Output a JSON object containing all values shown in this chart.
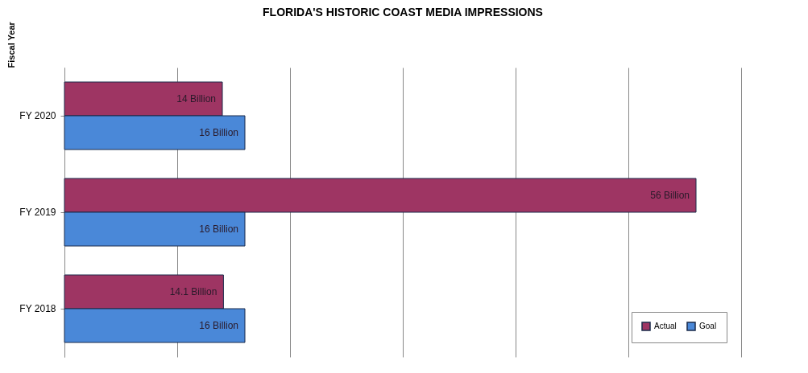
{
  "chart_data": {
    "type": "bar",
    "orientation": "horizontal",
    "title": "FLORIDA'S HISTORIC COAST MEDIA IMPRESSIONS",
    "ylabel": "Fiscal Year",
    "categories": [
      "FY 2020",
      "FY 2019",
      "FY 2018"
    ],
    "series": [
      {
        "name": "Actual",
        "color": "#9e3563",
        "values": [
          14,
          56,
          14.1
        ],
        "value_labels": [
          "14 Billion",
          "56 Billion",
          "14.1 Billion"
        ]
      },
      {
        "name": "Goal",
        "color": "#4a88d8",
        "values": [
          16,
          16,
          16
        ],
        "value_labels": [
          "16 Billion",
          "16 Billion",
          "16 Billion"
        ]
      }
    ],
    "xlim": [
      0,
      60
    ],
    "xticks": [
      {
        "value": 0,
        "label": null
      },
      {
        "value": 10,
        "label": null
      },
      {
        "value": 20,
        "label": null
      },
      {
        "value": 30,
        "label": null
      },
      {
        "value": 40,
        "label": null
      },
      {
        "value": 50,
        "label": null
      },
      {
        "value": 60,
        "label": null
      }
    ],
    "tick_labels": "y",
    "grid": "x",
    "legend": "bottom right"
  }
}
